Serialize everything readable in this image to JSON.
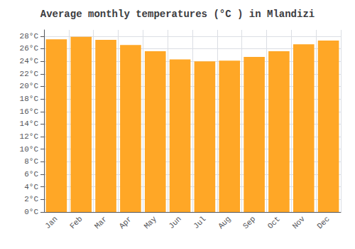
{
  "chart_data": {
    "type": "bar",
    "title": "Average monthly temperatures (°C ) in Mlandizi",
    "categories": [
      "Jan",
      "Feb",
      "Mar",
      "Apr",
      "May",
      "Jun",
      "Jul",
      "Aug",
      "Sep",
      "Oct",
      "Nov",
      "Dec"
    ],
    "values": [
      27.5,
      27.9,
      27.4,
      26.6,
      25.6,
      24.3,
      24.0,
      24.1,
      24.7,
      25.6,
      26.7,
      27.3
    ],
    "color": "#FFA726",
    "ylim": [
      0,
      29
    ],
    "yticks": [
      {
        "value": 0,
        "label": "0°C"
      },
      {
        "value": 2,
        "label": "2°C"
      },
      {
        "value": 4,
        "label": "4°C"
      },
      {
        "value": 6,
        "label": "6°C"
      },
      {
        "value": 8,
        "label": "8°C"
      },
      {
        "value": 10,
        "label": "10°C"
      },
      {
        "value": 12,
        "label": "12°C"
      },
      {
        "value": 14,
        "label": "14°C"
      },
      {
        "value": 16,
        "label": "16°C"
      },
      {
        "value": 18,
        "label": "18°C"
      },
      {
        "value": 20,
        "label": "20°C"
      },
      {
        "value": 22,
        "label": "22°C"
      },
      {
        "value": 24,
        "label": "24°C"
      },
      {
        "value": 26,
        "label": "26°C"
      },
      {
        "value": 28,
        "label": "28°C"
      }
    ],
    "grid": true
  }
}
